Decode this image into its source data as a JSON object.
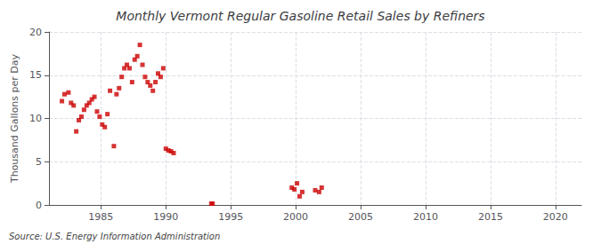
{
  "chart_data": {
    "type": "scatter",
    "title": "Monthly Vermont Regular Gasoline Retail Sales by Refiners",
    "ylabel": "Thousand Gallons per Day",
    "annotation": "Source: U.S. Energy Information Administration",
    "color": "#cc0000",
    "marker": "square",
    "grid": true,
    "xlim": [
      1981,
      2022
    ],
    "ylim": [
      0,
      20
    ],
    "xticks": [
      1985,
      1990,
      1995,
      2000,
      2005,
      2010,
      2015,
      2020
    ],
    "yticks": [
      0,
      5,
      10,
      15,
      20
    ],
    "x": [
      1982.0,
      1982.2,
      1982.5,
      1982.7,
      1982.9,
      1983.1,
      1983.3,
      1983.5,
      1983.7,
      1983.9,
      1984.1,
      1984.3,
      1984.5,
      1984.7,
      1984.9,
      1985.1,
      1985.3,
      1985.5,
      1985.7,
      1986.0,
      1986.2,
      1986.4,
      1986.6,
      1986.8,
      1987.0,
      1987.2,
      1987.4,
      1987.6,
      1987.8,
      1988.0,
      1988.2,
      1988.4,
      1988.6,
      1988.8,
      1989.0,
      1989.2,
      1989.4,
      1989.6,
      1989.8,
      1990.0,
      1990.2,
      1990.4,
      1990.6,
      1993.5,
      1993.6,
      1999.7,
      1999.9,
      2000.1,
      2000.3,
      2000.5,
      2001.5,
      2001.8,
      2002.0
    ],
    "values": [
      12.0,
      12.8,
      13.0,
      11.8,
      11.5,
      8.5,
      9.8,
      10.2,
      11.0,
      11.5,
      11.8,
      12.2,
      12.5,
      10.8,
      10.2,
      9.3,
      9.0,
      10.5,
      13.2,
      6.8,
      12.8,
      13.5,
      14.8,
      15.8,
      16.2,
      15.8,
      14.2,
      16.8,
      17.2,
      18.5,
      16.2,
      14.8,
      14.2,
      13.8,
      13.2,
      14.2,
      15.2,
      14.8,
      15.8,
      6.5,
      6.3,
      6.2,
      6.0,
      0.15,
      0.15,
      2.0,
      1.8,
      2.5,
      1.0,
      1.5,
      1.7,
      1.5,
      2.0
    ]
  }
}
